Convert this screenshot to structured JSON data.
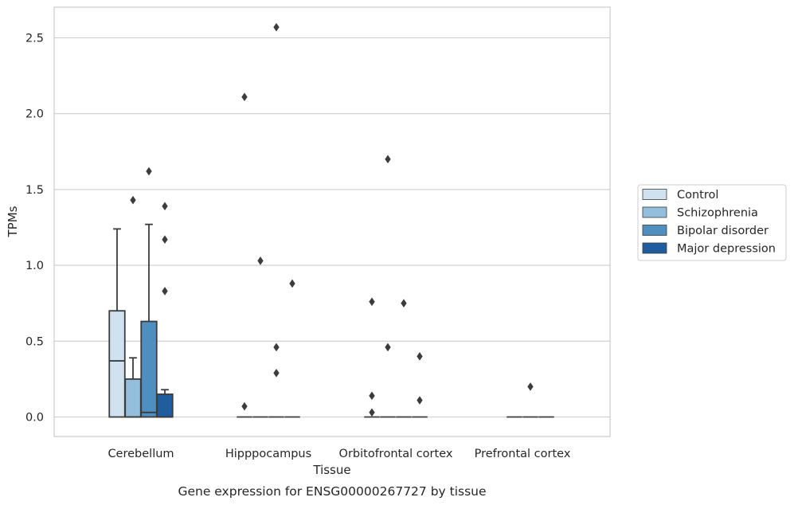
{
  "chart_data": {
    "type": "box",
    "title": "",
    "xlabel": "Tissue",
    "ylabel": "TPMs",
    "caption": "Gene expression for ENSG00000267727 by tissue",
    "ylim": [
      -0.12,
      2.7
    ],
    "yticks": [
      "0.0",
      "0.5",
      "1.0",
      "1.5",
      "2.0",
      "2.5"
    ],
    "grid": "horizontal",
    "legend_position": "right",
    "categories": [
      "Cerebellum",
      "Hipppocampus",
      "Orbitofrontal cortex",
      "Prefrontal cortex"
    ],
    "series": [
      {
        "name": "Control",
        "color": "#d0e1f0",
        "boxes": [
          {
            "q1": 0.0,
            "median": 0.37,
            "q3": 0.7,
            "whisker_low": 0.0,
            "whisker_high": 1.24,
            "outliers": []
          },
          {
            "q1": 0.0,
            "median": 0.0,
            "q3": 0.0,
            "whisker_low": 0.0,
            "whisker_high": 0.0,
            "outliers": [
              0.07,
              2.11
            ]
          },
          {
            "q1": 0.0,
            "median": 0.0,
            "q3": 0.0,
            "whisker_low": 0.0,
            "whisker_high": 0.0,
            "outliers": [
              0.03,
              0.14,
              0.76
            ]
          },
          null
        ]
      },
      {
        "name": "Schizophrenia",
        "color": "#93bfdc",
        "boxes": [
          {
            "q1": 0.0,
            "median": 0.0,
            "q3": 0.25,
            "whisker_low": 0.0,
            "whisker_high": 0.39,
            "outliers": [
              1.43
            ]
          },
          {
            "q1": 0.0,
            "median": 0.0,
            "q3": 0.0,
            "whisker_low": 0.0,
            "whisker_high": 0.0,
            "outliers": [
              1.03
            ]
          },
          {
            "q1": 0.0,
            "median": 0.0,
            "q3": 0.0,
            "whisker_low": 0.0,
            "whisker_high": 0.0,
            "outliers": [
              0.46,
              1.7
            ]
          },
          {
            "q1": 0.0,
            "median": 0.0,
            "q3": 0.0,
            "whisker_low": 0.0,
            "whisker_high": 0.0,
            "outliers": []
          }
        ]
      },
      {
        "name": "Bipolar disorder",
        "color": "#4f8fbf",
        "boxes": [
          {
            "q1": 0.0,
            "median": 0.03,
            "q3": 0.63,
            "whisker_low": 0.0,
            "whisker_high": 1.27,
            "outliers": [
              1.62
            ]
          },
          {
            "q1": 0.0,
            "median": 0.0,
            "q3": 0.0,
            "whisker_low": 0.0,
            "whisker_high": 0.0,
            "outliers": [
              0.29,
              0.46,
              2.57
            ]
          },
          {
            "q1": 0.0,
            "median": 0.0,
            "q3": 0.0,
            "whisker_low": 0.0,
            "whisker_high": 0.0,
            "outliers": [
              0.75
            ]
          },
          {
            "q1": 0.0,
            "median": 0.0,
            "q3": 0.0,
            "whisker_low": 0.0,
            "whisker_high": 0.0,
            "outliers": [
              0.2
            ]
          }
        ]
      },
      {
        "name": "Major depression",
        "color": "#1f5d9e",
        "boxes": [
          {
            "q1": 0.0,
            "median": 0.0,
            "q3": 0.15,
            "whisker_low": 0.0,
            "whisker_high": 0.18,
            "outliers": [
              0.83,
              1.17,
              1.39
            ]
          },
          {
            "q1": 0.0,
            "median": 0.0,
            "q3": 0.0,
            "whisker_low": 0.0,
            "whisker_high": 0.0,
            "outliers": [
              0.88
            ]
          },
          {
            "q1": 0.0,
            "median": 0.0,
            "q3": 0.0,
            "whisker_low": 0.0,
            "whisker_high": 0.0,
            "outliers": [
              0.11,
              0.4
            ]
          },
          {
            "q1": 0.0,
            "median": 0.0,
            "q3": 0.0,
            "whisker_low": 0.0,
            "whisker_high": 0.0,
            "outliers": []
          }
        ]
      }
    ]
  },
  "colors": {
    "grid": "#cccccc",
    "frame": "#cccccc",
    "box_edge": "#3c3c3c",
    "legend_border": "#cccccc"
  }
}
